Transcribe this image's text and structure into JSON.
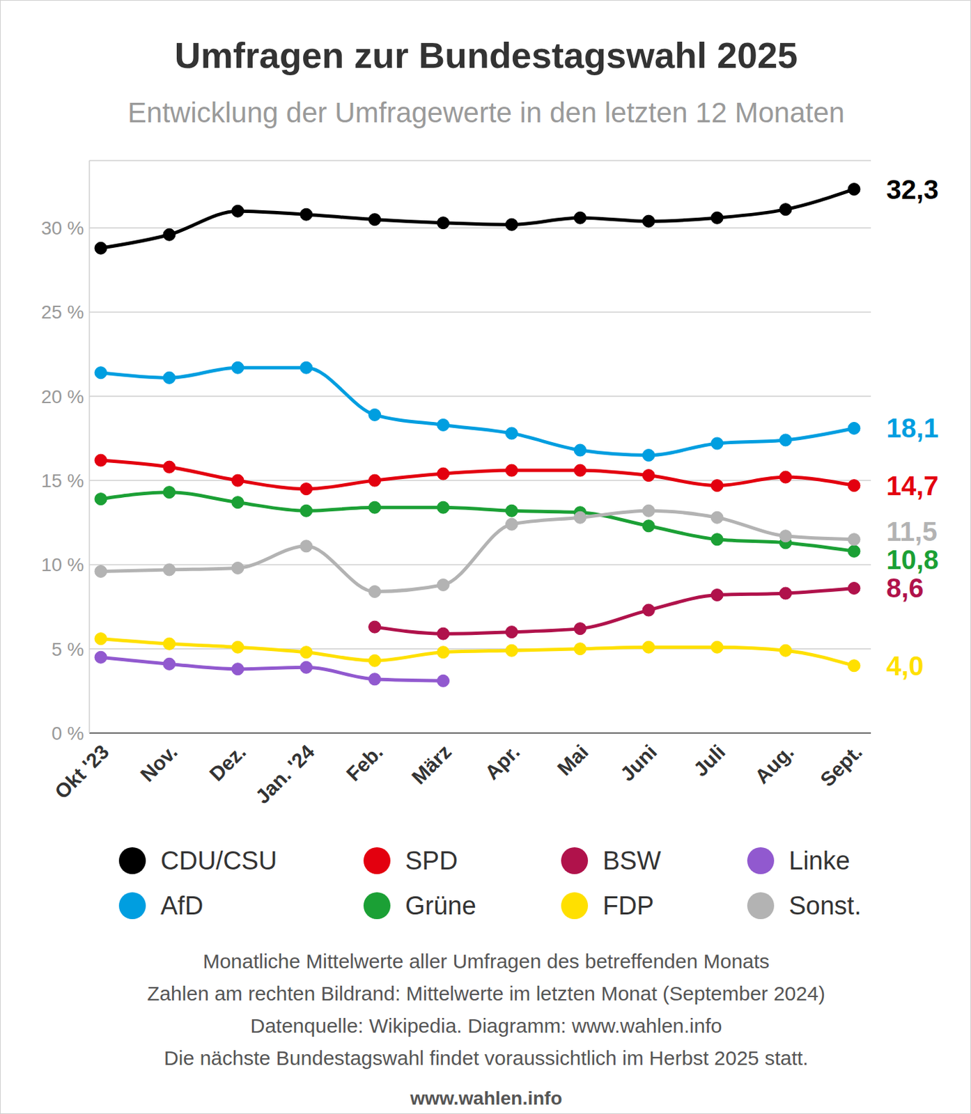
{
  "chart_data": {
    "type": "line",
    "title": "Umfragen zur Bundestagswahl 2025",
    "subtitle": "Entwicklung der Umfragewerte in den letzten 12 Monaten",
    "categories": [
      "Okt '23",
      "Nov.",
      "Dez.",
      "Jan. '24",
      "Feb.",
      "März",
      "Apr.",
      "Mai",
      "Juni",
      "Juli",
      "Aug.",
      "Sept."
    ],
    "series": [
      {
        "name": "CDU/CSU",
        "color": "#000000",
        "values": [
          28.8,
          29.6,
          31.0,
          30.8,
          30.5,
          30.3,
          30.2,
          30.6,
          30.4,
          30.6,
          31.1,
          32.3
        ],
        "value_labels": [
          null,
          null,
          null,
          null,
          null,
          null,
          null,
          null,
          null,
          null,
          null,
          "32,3"
        ]
      },
      {
        "name": "SPD",
        "color": "#e3000f",
        "values": [
          16.2,
          15.8,
          15.0,
          14.5,
          15.0,
          15.4,
          15.6,
          15.6,
          15.3,
          14.7,
          15.2,
          14.7
        ],
        "value_labels": [
          null,
          null,
          null,
          null,
          null,
          null,
          null,
          null,
          null,
          null,
          null,
          "14,7"
        ]
      },
      {
        "name": "BSW",
        "color": "#b0124b",
        "values": [
          null,
          null,
          null,
          null,
          6.3,
          5.9,
          6.0,
          6.2,
          7.3,
          8.2,
          8.3,
          8.6
        ],
        "value_labels": [
          null,
          null,
          null,
          null,
          null,
          null,
          null,
          null,
          null,
          null,
          null,
          "8,6"
        ]
      },
      {
        "name": "Linke",
        "color": "#9159cf",
        "values": [
          4.5,
          4.1,
          3.8,
          3.9,
          3.2,
          3.1,
          null,
          null,
          null,
          null,
          null,
          null
        ]
      },
      {
        "name": "AfD",
        "color": "#009ee0",
        "values": [
          21.4,
          21.1,
          21.7,
          21.7,
          18.9,
          18.3,
          17.8,
          16.8,
          16.5,
          17.2,
          17.4,
          18.1
        ],
        "value_labels": [
          null,
          null,
          null,
          null,
          null,
          null,
          null,
          null,
          null,
          null,
          null,
          "18,1"
        ]
      },
      {
        "name": "Grüne",
        "color": "#1ba035",
        "values": [
          13.9,
          14.3,
          13.7,
          13.2,
          13.4,
          13.4,
          13.2,
          13.1,
          12.3,
          11.5,
          11.3,
          10.8
        ],
        "value_labels": [
          null,
          null,
          null,
          null,
          null,
          null,
          null,
          null,
          null,
          null,
          null,
          "10,8"
        ]
      },
      {
        "name": "FDP",
        "color": "#ffe000",
        "values": [
          5.6,
          5.3,
          5.1,
          4.8,
          4.3,
          4.8,
          4.9,
          5.0,
          5.1,
          5.1,
          4.9,
          4.0
        ],
        "value_labels": [
          null,
          null,
          null,
          null,
          null,
          null,
          null,
          null,
          null,
          null,
          null,
          "4,0"
        ]
      },
      {
        "name": "Sonst.",
        "color": "#b3b3b3",
        "values": [
          9.6,
          9.7,
          9.8,
          11.1,
          8.4,
          8.8,
          12.4,
          12.8,
          13.2,
          12.8,
          11.7,
          11.5
        ],
        "value_labels": [
          null,
          null,
          null,
          null,
          null,
          null,
          null,
          null,
          null,
          null,
          null,
          "11,5"
        ]
      }
    ],
    "ylim": [
      0,
      34
    ],
    "yticks": [
      {
        "value": 0,
        "label": "0 %"
      },
      {
        "value": 5,
        "label": "5 %"
      },
      {
        "value": 10,
        "label": "10 %"
      },
      {
        "value": 15,
        "label": "15 %"
      },
      {
        "value": 20,
        "label": "20 %"
      },
      {
        "value": 25,
        "label": "25 %"
      },
      {
        "value": 30,
        "label": "30 %"
      }
    ],
    "grid": true,
    "marker": "circle",
    "legend": "bottom",
    "notes": [
      "Monatliche Mittelwerte aller Umfragen des betreffenden Monats",
      "Zahlen am rechten Bildrand: Mittelwerte im letzten Monat (September 2024)",
      "Datenquelle: Wikipedia. Diagramm: www.wahlen.info",
      "Die nächste Bundestagswahl findet voraussichtlich im Herbst 2025 statt."
    ],
    "footer": "www.wahlen.info"
  }
}
